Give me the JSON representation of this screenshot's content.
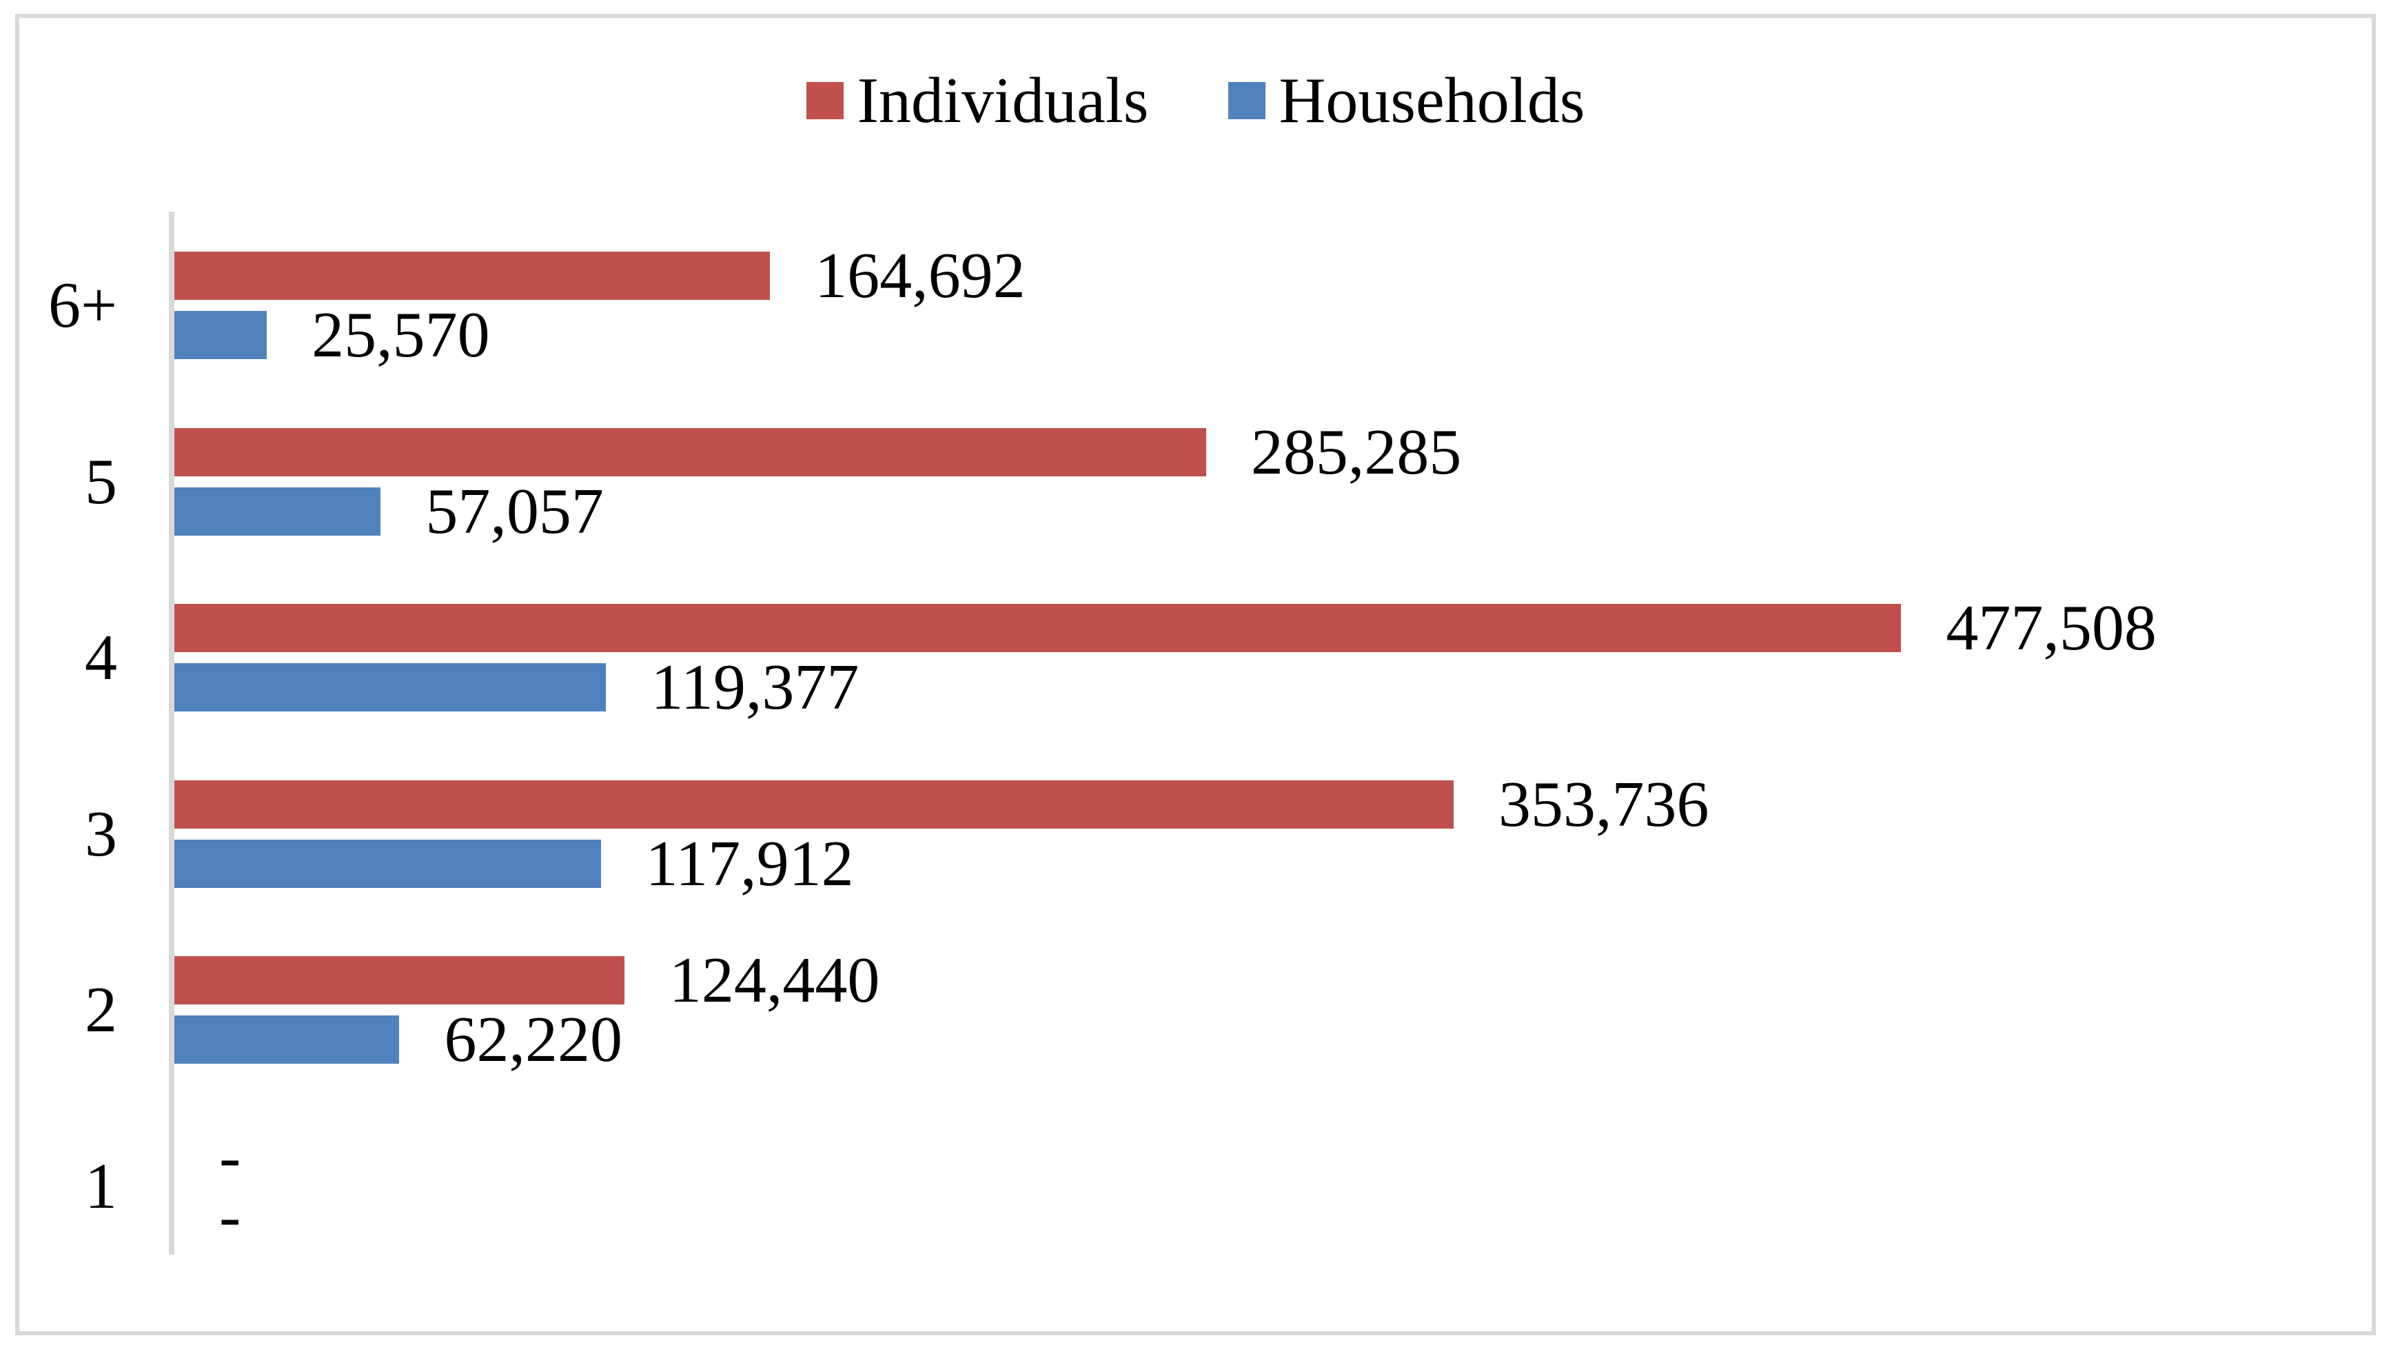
{
  "chart_data": {
    "type": "bar",
    "orientation": "horizontal",
    "title": "",
    "xlabel": "",
    "ylabel": "",
    "categories": [
      "6+",
      "5",
      "4",
      "3",
      "2",
      "1"
    ],
    "series": [
      {
        "name": "Individuals",
        "color": "#C0504D",
        "values": [
          164692,
          285285,
          477508,
          353736,
          124440,
          null
        ],
        "data_labels": [
          "164,692",
          "285,285",
          "477,508",
          "353,736",
          "124,440",
          "-"
        ]
      },
      {
        "name": "Households",
        "color": "#4F81BD",
        "values": [
          25570,
          57057,
          119377,
          117912,
          62220,
          null
        ],
        "data_labels": [
          "25,570",
          "57,057",
          "119,377",
          "117,912",
          "62,220",
          "-"
        ]
      }
    ],
    "legend_position": "top",
    "grid": false,
    "axis_color": "#D9D9D9",
    "max_value": 477508,
    "max_bar_pct": 78.54
  },
  "legend": {
    "items": [
      {
        "label": "Individuals",
        "color": "#C0504D"
      },
      {
        "label": "Households",
        "color": "#4F81BD"
      }
    ]
  },
  "rows": [
    {
      "category": "6+",
      "individuals": {
        "value": 164692,
        "label": "164,692"
      },
      "households": {
        "value": 25570,
        "label": "25,570"
      }
    },
    {
      "category": "5",
      "individuals": {
        "value": 285285,
        "label": "285,285"
      },
      "households": {
        "value": 57057,
        "label": "57,057"
      }
    },
    {
      "category": "4",
      "individuals": {
        "value": 477508,
        "label": "477,508"
      },
      "households": {
        "value": 119377,
        "label": "119,377"
      }
    },
    {
      "category": "3",
      "individuals": {
        "value": 353736,
        "label": "353,736"
      },
      "households": {
        "value": 117912,
        "label": "117,912"
      }
    },
    {
      "category": "2",
      "individuals": {
        "value": 124440,
        "label": "124,440"
      },
      "households": {
        "value": 62220,
        "label": "62,220"
      }
    },
    {
      "category": "1",
      "individuals": {
        "value": null,
        "label": "-"
      },
      "households": {
        "value": null,
        "label": "-"
      }
    }
  ]
}
